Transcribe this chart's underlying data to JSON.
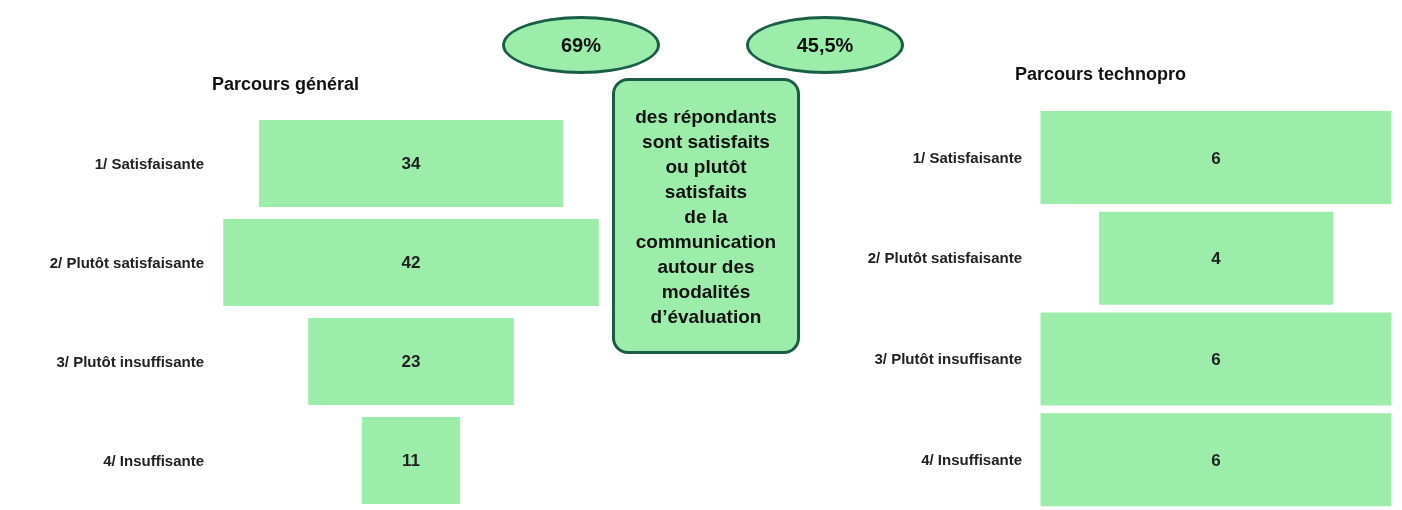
{
  "chart_data": [
    {
      "type": "other",
      "title": "Parcours général",
      "categories": [
        "1/ Satisfaisante",
        "2/ Plutôt satisfaisante",
        "3/ Plutôt insuffisante",
        "4/ Insuffisante"
      ],
      "values": [
        34,
        42,
        23,
        11
      ],
      "color": "#9cedaa",
      "data_labels": true
    },
    {
      "type": "other",
      "title": "Parcours technopro",
      "categories": [
        "1/ Satisfaisante",
        "2/ Plutôt satisfaisante",
        "3/ Plutôt insuffisante",
        "4/ Insuffisante"
      ],
      "values": [
        6,
        4,
        6,
        6
      ],
      "color": "#9cedaa",
      "data_labels": true
    },
    {
      "type": "other",
      "annotations": [
        "69%",
        "45,5%",
        "des répondants\nsont satisfaits\nou plutôt\nsatisfaits\nde la\ncommunication\nautour des\nmodalités\nd’évaluation"
      ]
    }
  ]
}
